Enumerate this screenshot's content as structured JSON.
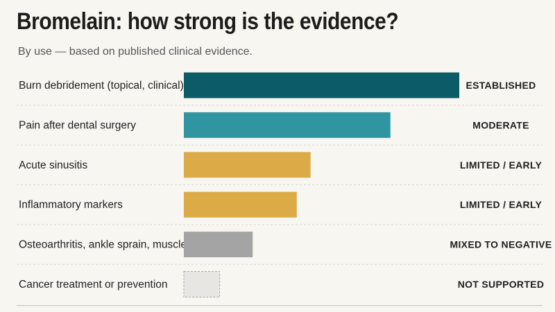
{
  "chart_data": {
    "type": "bar",
    "orientation": "horizontal",
    "title": "Bromelain: how strong is the evidence?",
    "subtitle": "By use — based on published clinical evidence.",
    "categories": [
      "Burn debridement (topical, clinical)",
      "Pain after dental surgery",
      "Acute sinusitis",
      "Inflammatory markers",
      "Osteoarthritis, ankle sprain, muscle soreness",
      "Cancer treatment or prevention"
    ],
    "values": [
      100,
      75,
      46,
      41,
      25,
      13
    ],
    "levels": [
      "ESTABLISHED",
      "MODERATE",
      "LIMITED / EARLY",
      "LIMITED / EARLY",
      "MIXED TO NEGATIVE",
      "NOT SUPPORTED"
    ],
    "level_colors": {
      "ESTABLISHED": "#0b5c66",
      "MODERATE": "#2e95a1",
      "LIMITED / EARLY": "#dcab47",
      "MIXED TO NEGATIVE": "#a4a4a4",
      "NOT SUPPORTED": "#e7e6e2"
    },
    "xlim": [
      0,
      100
    ],
    "grid": false,
    "legend": "none"
  }
}
